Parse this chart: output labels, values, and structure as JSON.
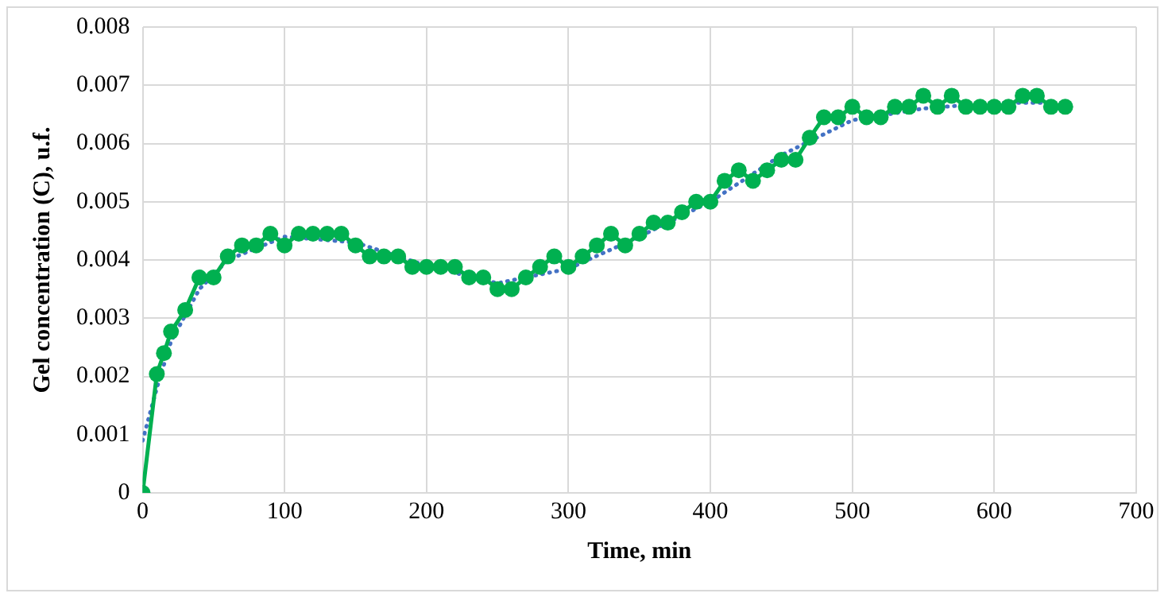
{
  "chart_data": {
    "type": "line",
    "xlabel": "Time, min",
    "ylabel": "Gel concentration (C), u.f.",
    "xlim": [
      0,
      700
    ],
    "xticks": [
      0,
      100,
      200,
      300,
      400,
      500,
      600,
      700
    ],
    "ylim": [
      0,
      0.008
    ],
    "yticks": [
      0,
      0.001,
      0.002,
      0.003,
      0.004,
      0.005,
      0.006,
      0.007,
      0.008
    ],
    "grid": true,
    "legend": false,
    "series": [
      {
        "color": "#00b050",
        "marker": "circle",
        "line_style": "solid",
        "x": [
          0,
          10,
          15,
          20,
          30,
          40,
          50,
          60,
          70,
          80,
          90,
          100,
          110,
          120,
          130,
          140,
          150,
          160,
          170,
          180,
          190,
          200,
          210,
          220,
          230,
          240,
          250,
          260,
          270,
          280,
          290,
          300,
          310,
          320,
          330,
          340,
          350,
          360,
          370,
          380,
          390,
          400,
          410,
          420,
          430,
          440,
          450,
          460,
          470,
          480,
          490,
          500,
          510,
          520,
          530,
          540,
          550,
          560,
          570,
          580,
          590,
          600,
          610,
          620,
          630,
          640,
          650
        ],
        "values": [
          0,
          0.00204,
          0.0024,
          0.00277,
          0.00314,
          0.0037,
          0.0037,
          0.00406,
          0.00425,
          0.00425,
          0.00445,
          0.00425,
          0.00445,
          0.00445,
          0.00445,
          0.00445,
          0.00425,
          0.00406,
          0.00406,
          0.00406,
          0.00388,
          0.00388,
          0.00388,
          0.00388,
          0.0037,
          0.0037,
          0.0035,
          0.0035,
          0.0037,
          0.00388,
          0.00406,
          0.00388,
          0.00406,
          0.00425,
          0.00445,
          0.00425,
          0.00445,
          0.00464,
          0.00464,
          0.00482,
          0.005,
          0.005,
          0.00536,
          0.00554,
          0.00536,
          0.00554,
          0.00572,
          0.00572,
          0.0061,
          0.00645,
          0.00645,
          0.00663,
          0.00645,
          0.00645,
          0.00663,
          0.00663,
          0.00682,
          0.00663,
          0.00682,
          0.00663,
          0.00663,
          0.00663,
          0.00663,
          0.00682,
          0.00682,
          0.00663,
          0.00663
        ]
      },
      {
        "color": "#4472c4",
        "marker": "none",
        "line_style": "dotted",
        "x": [
          0,
          10,
          20,
          40,
          60,
          100,
          150,
          200,
          250,
          300,
          350,
          400,
          450,
          500,
          550,
          600,
          650
        ],
        "values": [
          0.0009,
          0.0018,
          0.0026,
          0.0035,
          0.004,
          0.0044,
          0.0043,
          0.0039,
          0.0036,
          0.00385,
          0.0044,
          0.005,
          0.0058,
          0.0064,
          0.0066,
          0.0067,
          0.0067
        ]
      }
    ]
  }
}
